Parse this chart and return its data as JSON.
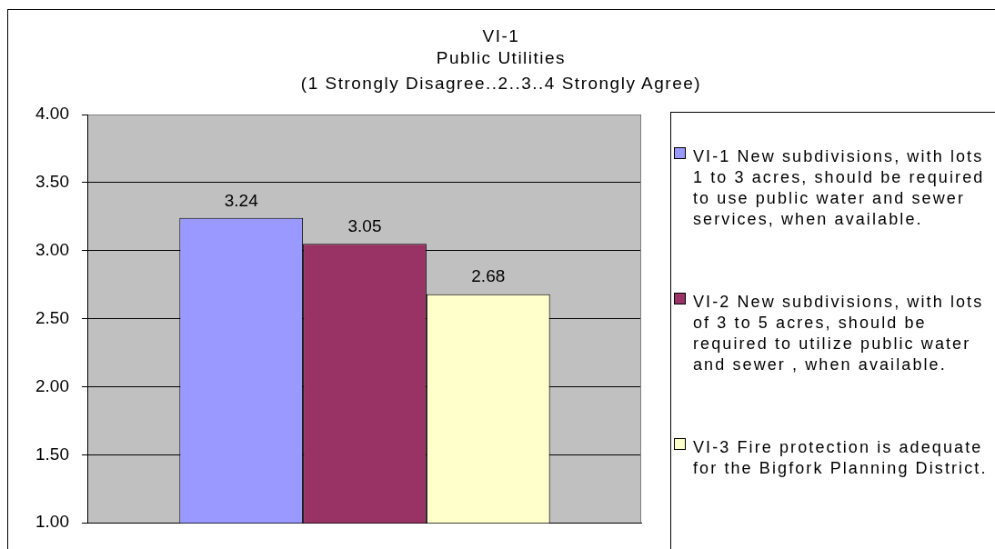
{
  "chart_data": {
    "type": "bar",
    "title": "VI-1\nPublic Utilities",
    "subtitle": "(1 Strongly Disagree..2..3..4 Strongly Agree)",
    "categories": [
      null
    ],
    "series": [
      {
        "name": "VI-1 New subdivisions, with lots 1 to 3 acres, should be required to use public water and sewer services, when available.",
        "color": "#9999ff",
        "values": [
          3.24
        ]
      },
      {
        "name": "VI-2 New subdivisions, with lots of 3 to 5 acres, should be required to utilize public water and sewer , when available.",
        "color": "#993366",
        "values": [
          3.05
        ]
      },
      {
        "name": "VI-3 Fire protection is adequate for the Bigfork Planning District.",
        "color": "#ffffcc",
        "values": [
          2.68
        ]
      }
    ],
    "ylim": [
      1,
      4
    ],
    "yticks": [
      {
        "value": 1,
        "label": "1.00"
      },
      {
        "value": 1.5,
        "label": "1.50"
      },
      {
        "value": 2,
        "label": "2.00"
      },
      {
        "value": 2.5,
        "label": "2.50"
      },
      {
        "value": 3,
        "label": "3.00"
      },
      {
        "value": 3.5,
        "label": "3.50"
      },
      {
        "value": 4,
        "label": "4.00"
      }
    ],
    "grid": "y",
    "legend": "right",
    "data_labels": true
  }
}
